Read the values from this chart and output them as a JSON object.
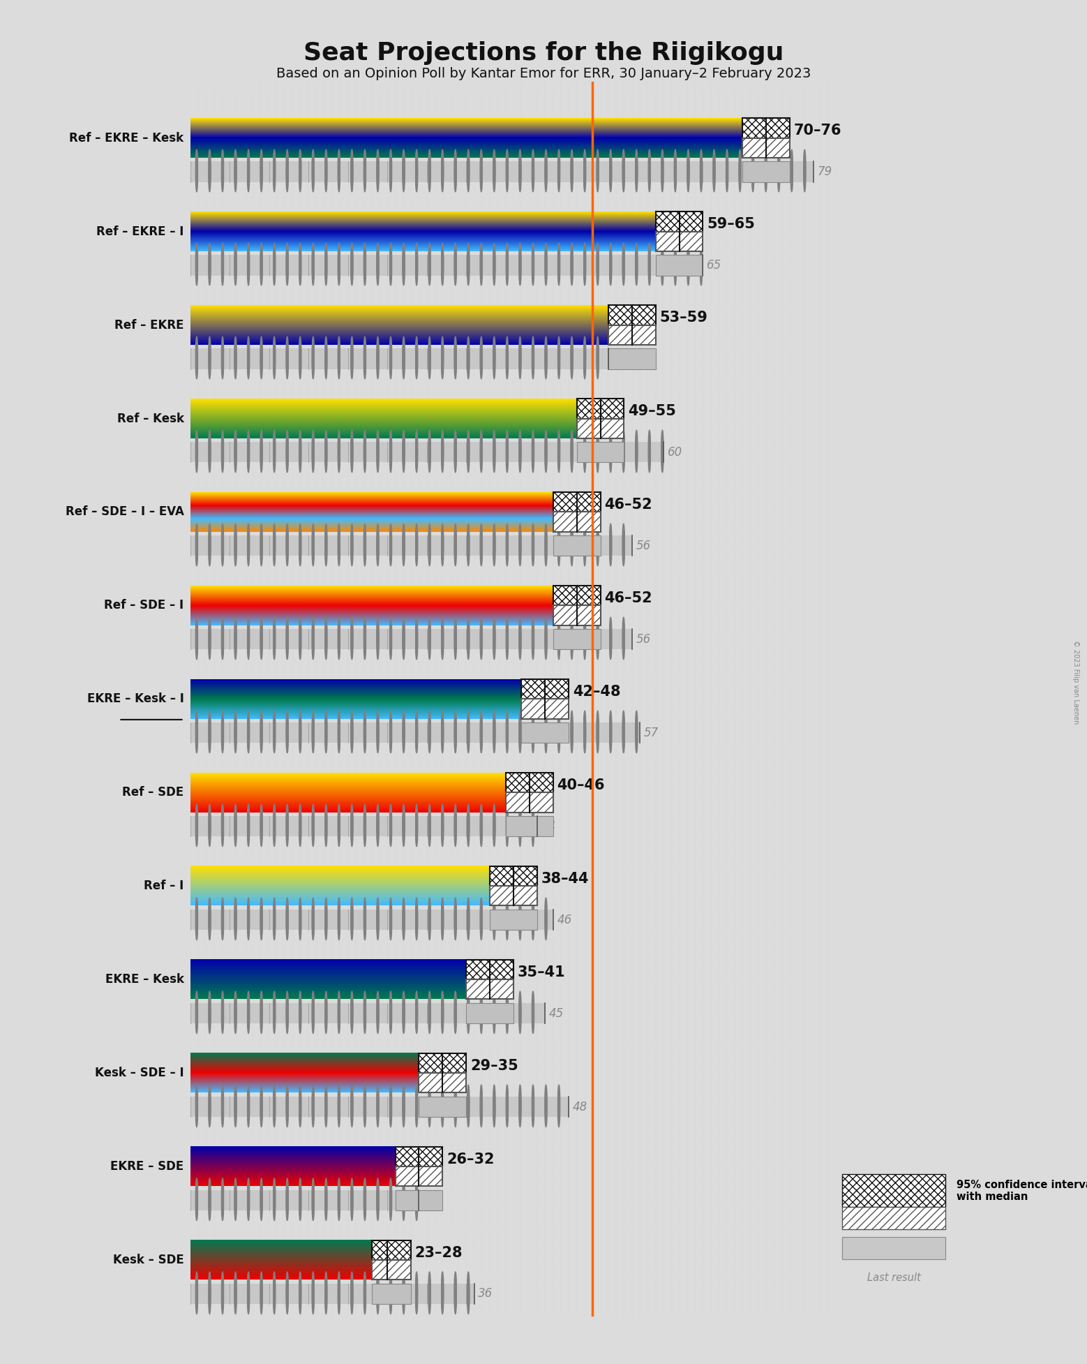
{
  "title": "Seat Projections for the Riigikogu",
  "subtitle": "Based on an Opinion Poll by Kantar Emor for ERR, 30 January–2 February 2023",
  "copyright": "© 2023 Filip van Laenen",
  "background_color": "#dcdcdc",
  "majority_line": 51,
  "coalitions": [
    {
      "label": "Ref – EKRE – Kesk",
      "underline": false,
      "parties": [
        "Ref",
        "EKRE",
        "Kesk"
      ],
      "ci_low": 70,
      "ci_high": 76,
      "median": 73,
      "last_result": 79
    },
    {
      "label": "Ref – EKRE – I",
      "underline": false,
      "parties": [
        "Ref",
        "EKRE",
        "I"
      ],
      "ci_low": 59,
      "ci_high": 65,
      "median": 62,
      "last_result": 65
    },
    {
      "label": "Ref – EKRE",
      "underline": false,
      "parties": [
        "Ref",
        "EKRE"
      ],
      "ci_low": 53,
      "ci_high": 59,
      "median": 56,
      "last_result": 53
    },
    {
      "label": "Ref – Kesk",
      "underline": false,
      "parties": [
        "Ref",
        "Kesk"
      ],
      "ci_low": 49,
      "ci_high": 55,
      "median": 52,
      "last_result": 60
    },
    {
      "label": "Ref – SDE – I – EVA",
      "underline": false,
      "parties": [
        "Ref",
        "SDE",
        "I",
        "EVA"
      ],
      "ci_low": 46,
      "ci_high": 52,
      "median": 49,
      "last_result": 56
    },
    {
      "label": "Ref – SDE – I",
      "underline": false,
      "parties": [
        "Ref",
        "SDE",
        "I"
      ],
      "ci_low": 46,
      "ci_high": 52,
      "median": 49,
      "last_result": 56
    },
    {
      "label": "EKRE – Kesk – I",
      "underline": true,
      "parties": [
        "EKRE",
        "Kesk",
        "I"
      ],
      "ci_low": 42,
      "ci_high": 48,
      "median": 45,
      "last_result": 57
    },
    {
      "label": "Ref – SDE",
      "underline": false,
      "parties": [
        "Ref",
        "SDE"
      ],
      "ci_low": 40,
      "ci_high": 46,
      "median": 43,
      "last_result": 44
    },
    {
      "label": "Ref – I",
      "underline": false,
      "parties": [
        "Ref",
        "I"
      ],
      "ci_low": 38,
      "ci_high": 44,
      "median": 41,
      "last_result": 46
    },
    {
      "label": "EKRE – Kesk",
      "underline": false,
      "parties": [
        "EKRE",
        "Kesk"
      ],
      "ci_low": 35,
      "ci_high": 41,
      "median": 38,
      "last_result": 45
    },
    {
      "label": "Kesk – SDE – I",
      "underline": false,
      "parties": [
        "Kesk",
        "SDE",
        "I"
      ],
      "ci_low": 29,
      "ci_high": 35,
      "median": 32,
      "last_result": 48
    },
    {
      "label": "EKRE – SDE",
      "underline": false,
      "parties": [
        "EKRE",
        "SDE"
      ],
      "ci_low": 26,
      "ci_high": 32,
      "median": 29,
      "last_result": 29
    },
    {
      "label": "Kesk – SDE",
      "underline": false,
      "parties": [
        "Kesk",
        "SDE"
      ],
      "ci_low": 23,
      "ci_high": 28,
      "median": 25,
      "last_result": 36
    }
  ],
  "party_colors": {
    "Ref": "#FFE000",
    "EKRE": "#0000AA",
    "Kesk": "#007A50",
    "SDE": "#EE0000",
    "I": "#44BBFF",
    "EVA": "#FF8800"
  },
  "xmin": 0,
  "xmax": 82,
  "majority_color": "#FF6600",
  "ci_dark_color": "#111122",
  "ci_light_color": "#bbbbbb",
  "dot_bg_color": "#c8c8c8",
  "label_fontsize": 12,
  "range_fontsize": 15,
  "last_result_fontsize": 12
}
